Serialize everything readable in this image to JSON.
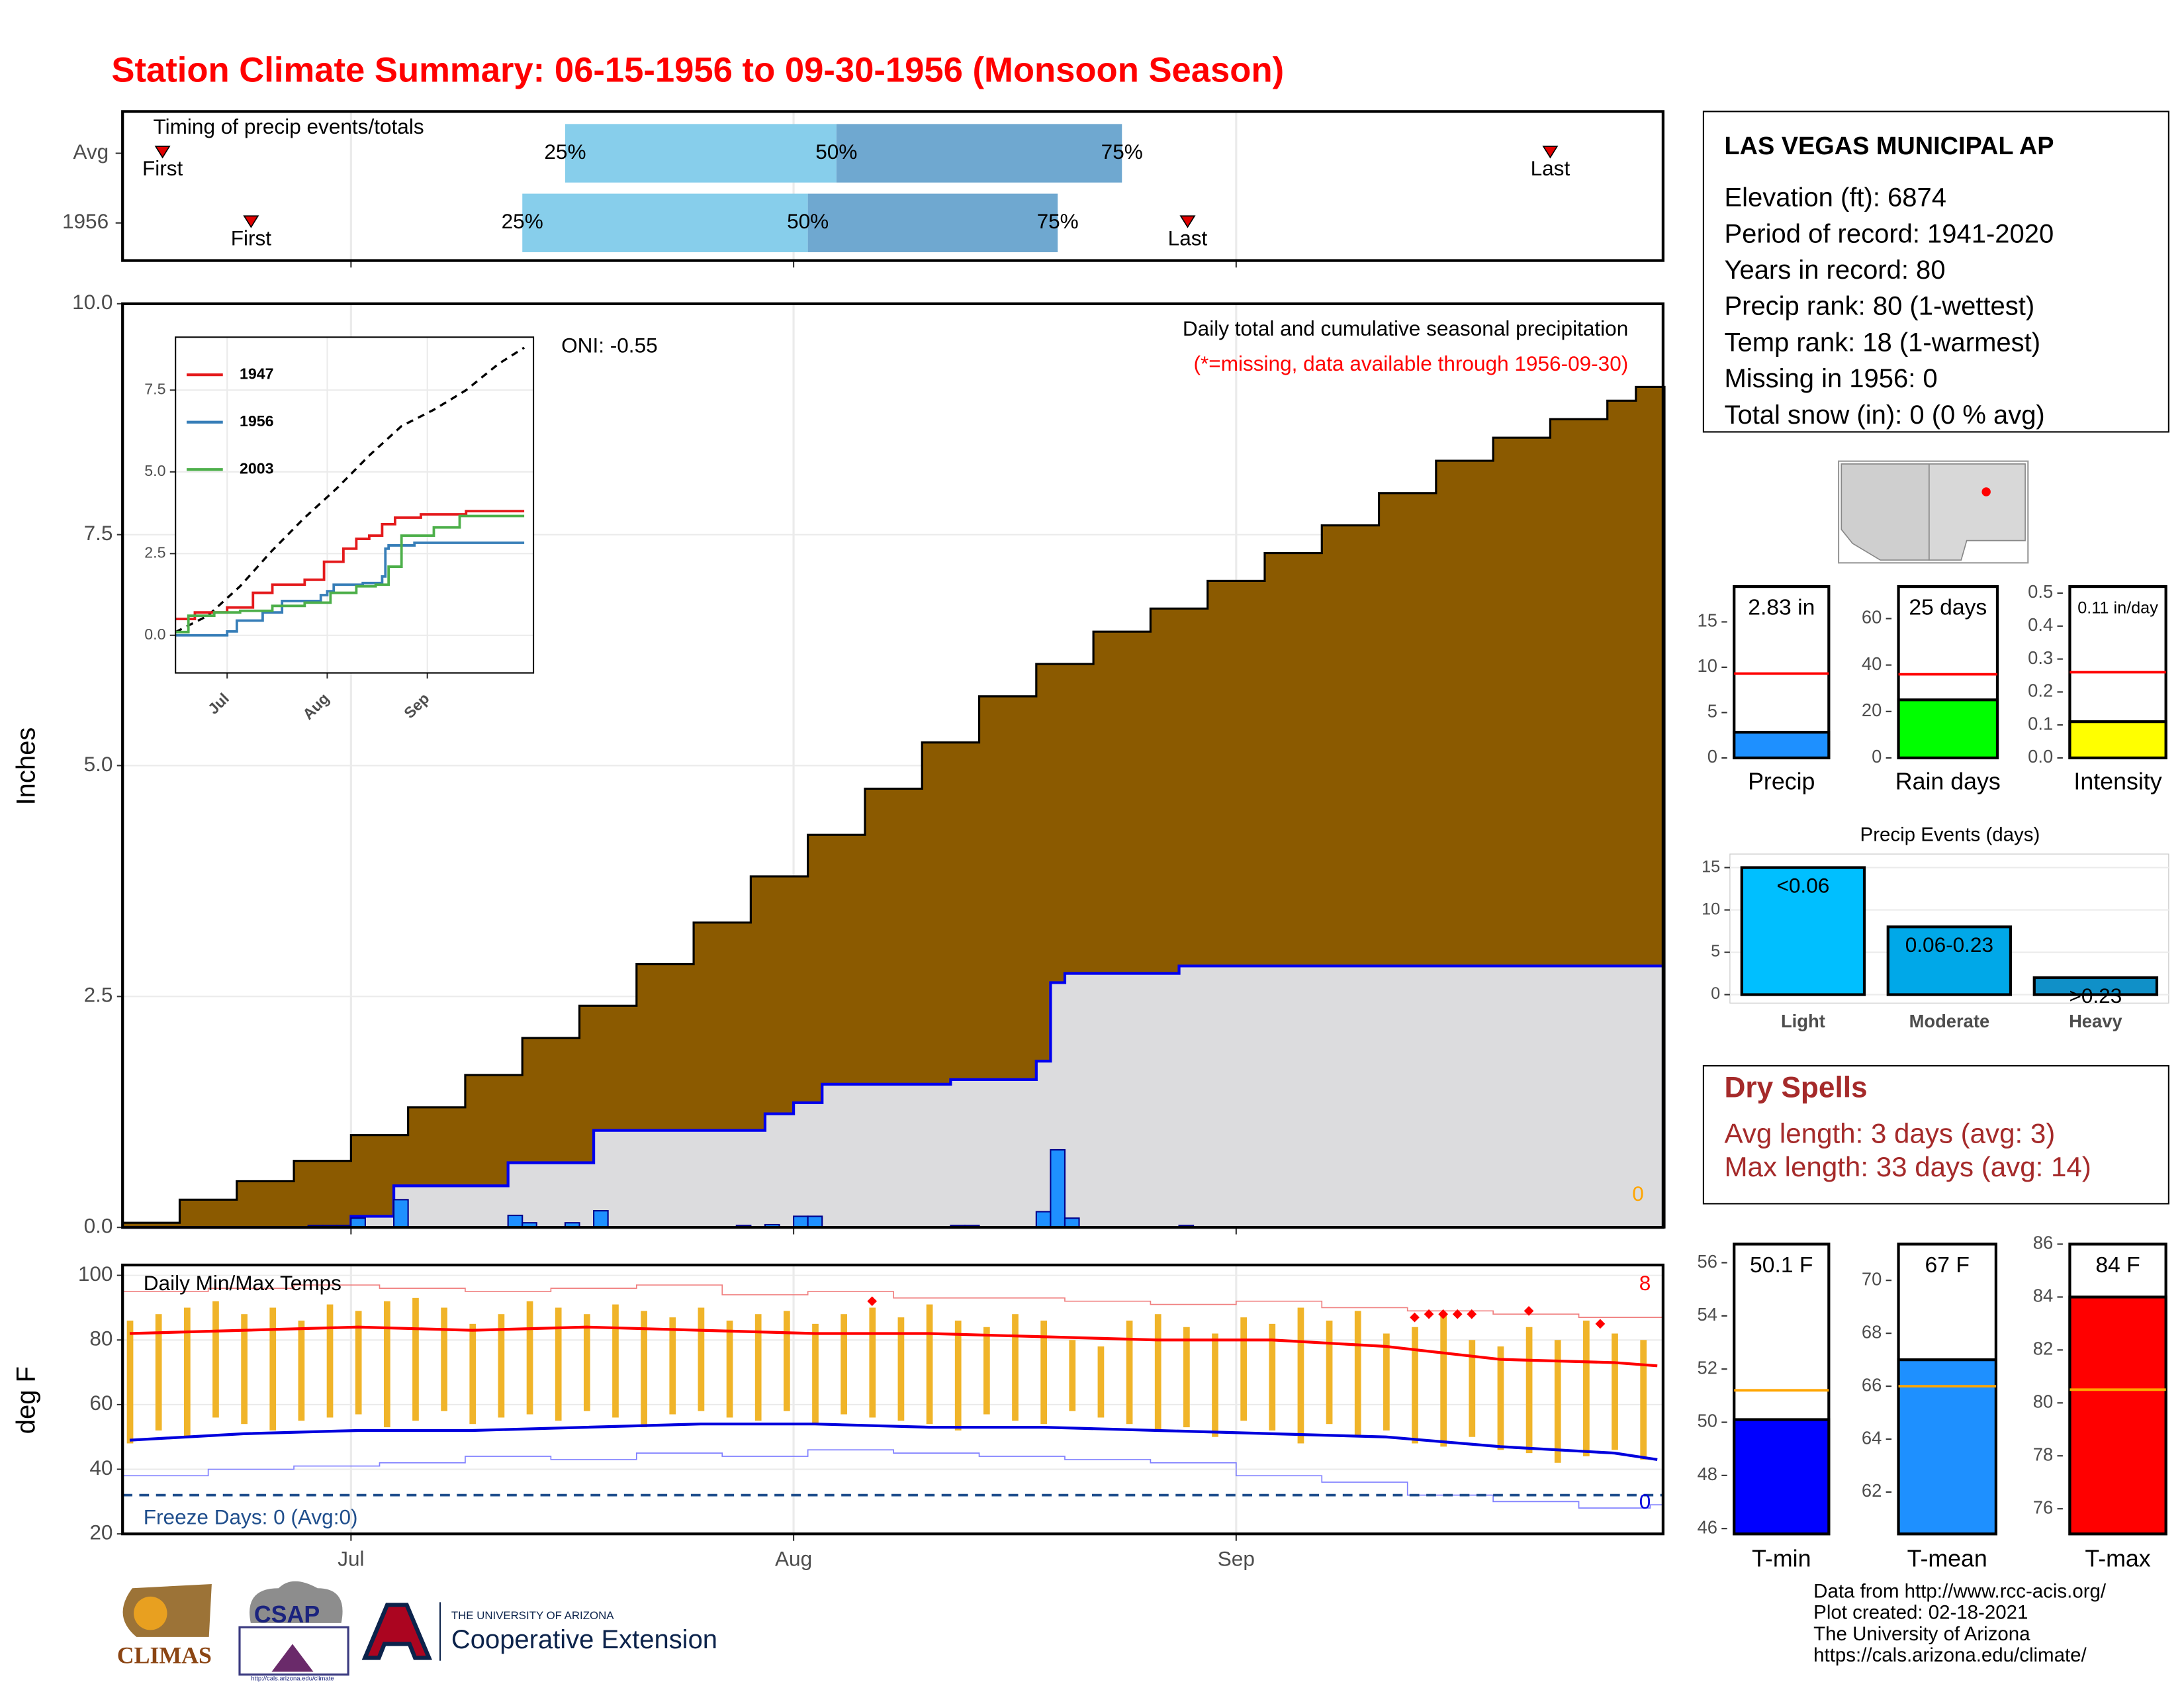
{
  "title": "Station Climate Summary: 06-15-1956 to 09-30-1956 (Monsoon Season)",
  "chart_data": [
    {
      "type": "timing",
      "title": "Timing of precip events/totals",
      "xlim": [
        0,
        108
      ],
      "xticks": [
        16,
        47,
        78
      ],
      "first_label": "First",
      "last_label": "Last",
      "quantile_labels": [
        "25%",
        "50%",
        "75%"
      ],
      "quantile_colors": [
        "#87ceeb",
        "#6fa8d0"
      ],
      "marker_color": "#e00000",
      "rows": [
        {
          "name": "Avg",
          "first": 2.8,
          "quantiles": [
            31,
            50,
            70
          ],
          "last": 100
        },
        {
          "name": "1956",
          "first": 9,
          "quantiles": [
            28,
            48,
            65.5
          ],
          "last": 74.6
        }
      ]
    },
    {
      "type": "step_area",
      "y_label": "Inches",
      "annotation": "Daily total and cumulative seasonal precipitation",
      "note": "(*=missing, data available through 1956-09-30)",
      "note_color": "#ff0000",
      "oni": "ONI: -0.55",
      "xlim": [
        0,
        108
      ],
      "xticks": [
        16,
        47,
        78
      ],
      "ylim": [
        0,
        10
      ],
      "yticks": [
        {
          "value": 0,
          "label": "0.0"
        },
        2.5,
        {
          "value": 5,
          "label": "5.0"
        },
        7.5,
        {
          "value": 10,
          "label": "10.0"
        }
      ],
      "grid": true,
      "average_cumulative": {
        "color": "#8b5a00",
        "x": [
          0,
          4,
          8,
          12,
          16,
          20,
          24,
          28,
          32,
          36,
          40,
          44,
          48,
          52,
          56,
          60,
          64,
          68,
          72,
          76,
          80,
          84,
          88,
          92,
          96,
          100,
          104,
          106
        ],
        "values": [
          0.05,
          0.3,
          0.5,
          0.72,
          1.0,
          1.3,
          1.65,
          2.05,
          2.4,
          2.85,
          3.3,
          3.8,
          4.25,
          4.75,
          5.25,
          5.75,
          6.1,
          6.45,
          6.7,
          7.0,
          7.3,
          7.6,
          7.95,
          8.3,
          8.55,
          8.75,
          8.95,
          9.1
        ]
      },
      "cumulative": {
        "color": "#0000ee",
        "fill": "#dcdcde",
        "x": [
          0,
          16,
          19,
          27,
          33,
          45,
          47,
          49,
          58,
          64,
          65,
          66,
          74
        ],
        "values": [
          0,
          0.12,
          0.45,
          0.7,
          1.05,
          1.23,
          1.35,
          1.55,
          1.6,
          1.8,
          2.65,
          2.75,
          2.83
        ]
      },
      "daily": {
        "color": "#1e90ff",
        "x": [
          13,
          14,
          15,
          16,
          19,
          27,
          28,
          31,
          33,
          43,
          45,
          47,
          48,
          58,
          59,
          64,
          65,
          66,
          74
        ],
        "values": [
          0.02,
          0.02,
          0.02,
          0.1,
          0.3,
          0.13,
          0.05,
          0.05,
          0.18,
          0.02,
          0.03,
          0.12,
          0.12,
          0.02,
          0.02,
          0.17,
          0.84,
          0.1,
          0.02
        ]
      },
      "missing_days": 0,
      "missing_color": "#ffa500"
    },
    {
      "type": "line",
      "xlim": [
        0,
        110
      ],
      "xticks": [
        {
          "value": 16,
          "label": "Jul"
        },
        {
          "value": 47,
          "label": "Aug"
        },
        {
          "value": 78,
          "label": "Sep"
        }
      ],
      "ylim": [
        -1.15,
        9.12
      ],
      "yticks": [
        {
          "value": 0,
          "label": "0.0"
        },
        2.5,
        {
          "value": 5,
          "label": "5.0"
        },
        7.5
      ],
      "maximum": {
        "color": "#000000",
        "x": [
          0,
          10,
          20,
          30,
          40,
          50,
          60,
          70,
          80,
          90,
          100,
          108
        ],
        "values": [
          0.1,
          0.6,
          1.5,
          2.6,
          3.6,
          4.5,
          5.5,
          6.4,
          6.9,
          7.5,
          8.3,
          8.8
        ]
      },
      "series": [
        {
          "name": "1947",
          "color": "#e41a1c",
          "x": [
            0,
            6,
            16,
            24,
            30,
            40,
            46,
            52,
            56,
            60,
            64,
            68,
            76,
            90
          ],
          "values": [
            0.5,
            0.7,
            0.85,
            1.3,
            1.55,
            1.7,
            2.25,
            2.65,
            2.95,
            3.05,
            3.4,
            3.6,
            3.7,
            3.8
          ]
        },
        {
          "name": "1956",
          "color": "#377eb8",
          "x": [
            0,
            16,
            19,
            27,
            33,
            45,
            47,
            49,
            58,
            64,
            65,
            66,
            74
          ],
          "values": [
            0,
            0.12,
            0.45,
            0.7,
            1.05,
            1.23,
            1.35,
            1.55,
            1.6,
            1.8,
            2.65,
            2.75,
            2.83
          ]
        },
        {
          "name": "2003",
          "color": "#4daf4a",
          "x": [
            0,
            4,
            12,
            20,
            30,
            40,
            48,
            56,
            62,
            66,
            70,
            80,
            88
          ],
          "values": [
            0.1,
            0.6,
            0.7,
            0.75,
            0.9,
            1.0,
            1.3,
            1.5,
            1.55,
            2.1,
            3.05,
            3.3,
            3.65
          ]
        }
      ]
    },
    {
      "type": "range_bar",
      "title": "Daily Min/Max Temps",
      "y_label": "deg F",
      "xlim": [
        0,
        108
      ],
      "xticks": [
        {
          "value": 16,
          "label": "Jul"
        },
        {
          "value": 47,
          "label": "Aug"
        },
        {
          "value": 78,
          "label": "Sep"
        }
      ],
      "ylim": [
        20,
        103.2
      ],
      "yticks": [
        20,
        40,
        60,
        80,
        100
      ],
      "grid": true,
      "bar_color": "#f0b429",
      "x": [
        0,
        2,
        4,
        6,
        8,
        10,
        12,
        14,
        16,
        18,
        20,
        22,
        24,
        26,
        28,
        30,
        32,
        34,
        36,
        38,
        40,
        42,
        44,
        46,
        48,
        50,
        52,
        54,
        56,
        58,
        60,
        62,
        64,
        66,
        68,
        70,
        72,
        74,
        76,
        78,
        80,
        82,
        84,
        86,
        88,
        90,
        92,
        94,
        96,
        98,
        100,
        102,
        104,
        106
      ],
      "max": [
        86,
        88,
        90,
        92,
        88,
        90,
        86,
        91,
        89,
        92,
        93,
        90,
        85,
        88,
        92,
        90,
        88,
        91,
        89,
        87,
        90,
        86,
        88,
        89,
        85,
        88,
        90,
        87,
        91,
        86,
        84,
        88,
        86,
        80,
        78,
        86,
        88,
        84,
        82,
        87,
        85,
        90,
        86,
        89,
        82,
        84,
        88,
        80,
        78,
        84,
        80,
        86,
        82,
        80
      ],
      "min": [
        48,
        52,
        50,
        56,
        54,
        52,
        55,
        56,
        57,
        53,
        55,
        58,
        54,
        56,
        57,
        55,
        58,
        56,
        53,
        57,
        58,
        56,
        55,
        58,
        54,
        57,
        56,
        55,
        54,
        52,
        57,
        55,
        54,
        58,
        56,
        54,
        52,
        53,
        50,
        55,
        52,
        48,
        54,
        50,
        52,
        48,
        47,
        50,
        46,
        45,
        42,
        44,
        46,
        43
      ],
      "average_max": {
        "color": "#ff0000",
        "x": [
          0,
          8,
          16,
          24,
          32,
          40,
          48,
          56,
          64,
          72,
          80,
          88,
          96,
          104,
          107
        ],
        "values": [
          82,
          83,
          84,
          83,
          84,
          83,
          82,
          82,
          81,
          80,
          80,
          78,
          74,
          73,
          72
        ]
      },
      "average_min": {
        "color": "#0000dd",
        "x": [
          0,
          8,
          16,
          24,
          32,
          40,
          48,
          56,
          64,
          72,
          80,
          88,
          96,
          104,
          107
        ],
        "values": [
          49,
          51,
          52,
          52,
          53,
          54,
          54,
          53,
          53,
          52,
          51,
          50,
          47,
          45,
          43
        ]
      },
      "record_max": {
        "color": "#f08080",
        "x": [
          0,
          6,
          12,
          18,
          24,
          30,
          36,
          42,
          48,
          54,
          60,
          66,
          72,
          78,
          84,
          90,
          96,
          102,
          107
        ],
        "values": [
          95,
          96,
          97,
          96,
          95,
          96,
          97,
          94,
          95,
          93,
          93,
          92,
          91,
          92,
          90,
          89,
          88,
          87,
          87
        ]
      },
      "record_min": {
        "color": "#8080ff",
        "x": [
          0,
          6,
          12,
          18,
          24,
          30,
          36,
          42,
          48,
          54,
          60,
          66,
          72,
          78,
          84,
          90,
          96,
          102,
          107
        ],
        "values": [
          38,
          40,
          41,
          42,
          44,
          43,
          45,
          44,
          46,
          45,
          44,
          43,
          42,
          38,
          36,
          32,
          30,
          28,
          29
        ]
      },
      "records": {
        "color": "#ff0000",
        "x": [
          52,
          90,
          91,
          92,
          93,
          94,
          98,
          103
        ],
        "values": [
          92,
          87,
          88,
          88,
          88,
          88,
          89,
          85
        ]
      },
      "record_high_count": 8,
      "record_low_count": 0,
      "freeze_line": 32,
      "freeze_color": "#1f4e8c",
      "freeze_text": "Freeze Days: 0 (Avg:0)"
    },
    {
      "type": "summary_bar",
      "label": "Precip",
      "value": 2.83,
      "value_label": "2.83 in",
      "average": 9.3,
      "color": "#1e90ff",
      "avg_color": "#ff0000",
      "ylim": [
        0,
        18.9
      ],
      "yticks": [
        0,
        5,
        10,
        15
      ]
    },
    {
      "type": "summary_bar",
      "label": "Rain days",
      "value": 25,
      "value_label": "25 days",
      "average": 36,
      "color": "#00ff00",
      "avg_color": "#ff0000",
      "ylim": [
        0,
        73.8
      ],
      "yticks": [
        0,
        20,
        40,
        60
      ]
    },
    {
      "type": "summary_bar",
      "label": "Intensity",
      "value": 0.11,
      "value_label": "0.11 in/day",
      "average": 0.26,
      "color": "#ffff00",
      "avg_color": "#ff0000",
      "ylim": [
        0,
        0.52
      ],
      "yticks": [
        {
          "value": 0,
          "label": "0.0"
        },
        0.1,
        0.2,
        0.3,
        0.4,
        0.5
      ]
    },
    {
      "type": "bar",
      "title": "Precip Events (days)",
      "categories": [
        "Light",
        "Moderate",
        "Heavy"
      ],
      "values": [
        15,
        8,
        2
      ],
      "value_labels": [
        "<0.06",
        "0.06-0.23",
        ">0.23"
      ],
      "colors": [
        "#00bfff",
        "#00a8e8",
        "#1090c8"
      ],
      "ylim": [
        -1,
        16.6
      ],
      "yticks": [
        0,
        5,
        10,
        15
      ],
      "grid": true
    },
    {
      "type": "summary_bar",
      "label": "T-min",
      "value": 50.1,
      "value_label": "50.1 F",
      "average": 51.2,
      "color": "#0000ff",
      "avg_color": "#ffa500",
      "ylim": [
        45.8,
        56.7
      ],
      "yticks": [
        46,
        48,
        50,
        52,
        54,
        56
      ]
    },
    {
      "type": "summary_bar",
      "label": "T-mean",
      "value": 67,
      "value_label": "67 F",
      "average": 66,
      "color": "#1e90ff",
      "avg_color": "#ffa500",
      "ylim": [
        60.42,
        71.37
      ],
      "yticks": [
        62,
        64,
        66,
        68,
        70
      ]
    },
    {
      "type": "summary_bar",
      "label": "T-max",
      "value": 84,
      "value_label": "84 F",
      "average": 80.5,
      "color": "#ff0000",
      "avg_color": "#ffa500",
      "ylim": [
        75.05,
        86
      ],
      "yticks": [
        76,
        78,
        80,
        82,
        84,
        86
      ]
    }
  ],
  "station": {
    "name": "LAS VEGAS MUNICIPAL AP",
    "lines": [
      "Elevation (ft): 6874",
      "Period of record: 1941-2020",
      "Years in record: 80",
      "Precip rank: 80 (1-wettest)",
      "Temp rank: 18 (1-warmest)",
      "Missing in 1956: 0",
      "Total snow (in): 0 (0 % avg)"
    ]
  },
  "dry_spells": {
    "title": "Dry Spells",
    "lines": [
      "Avg length: 3 days (avg: 3)",
      "Max length: 33 days (avg: 14)"
    ]
  },
  "footer": [
    "Data from http://www.rcc-acis.org/",
    "Plot created: 02-18-2021",
    "The University of Arizona",
    "https://cals.arizona.edu/climate/"
  ],
  "logos": {
    "climas": "CLIMAS",
    "csap": "CSAP",
    "csap_url": "http://cals.arizona.edu/climate",
    "university": "THE UNIVERSITY OF ARIZONA",
    "extension": "Cooperative Extension"
  }
}
